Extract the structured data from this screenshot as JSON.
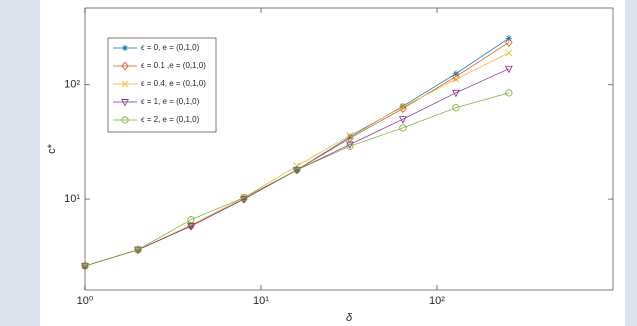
{
  "chart_data": {
    "type": "line",
    "xlabel": "δ",
    "ylabel": "c*",
    "x": [
      1,
      2,
      4,
      8,
      16,
      32,
      64,
      128,
      256
    ],
    "series": [
      {
        "name": "ϵ = 0, e = (0,1,0)",
        "color": "#0072bd",
        "marker": "asterisk",
        "values": [
          2.6,
          3.6,
          5.8,
          10,
          18,
          35,
          65,
          125,
          255
        ]
      },
      {
        "name": "ϵ = 0.1 ,e = (0,1,0)",
        "color": "#d95319",
        "marker": "diamond",
        "values": [
          2.6,
          3.6,
          5.8,
          10,
          18,
          34,
          62,
          118,
          235
        ]
      },
      {
        "name": "ϵ = 0.4, e = (0,1,0)",
        "color": "#edb120",
        "marker": "x",
        "values": [
          2.6,
          3.6,
          5.9,
          10.3,
          19.5,
          36,
          64,
          112,
          190
        ]
      },
      {
        "name": "ϵ = 1, e = (0,1,0)",
        "color": "#7e2f8e",
        "marker": "triangle-down",
        "values": [
          2.6,
          3.6,
          5.8,
          10,
          18,
          30,
          50,
          85,
          138
        ]
      },
      {
        "name": "ϵ = 2, e = (0,1,0)",
        "color": "#77ac30",
        "marker": "circle",
        "values": [
          2.6,
          3.6,
          6.6,
          10.3,
          18,
          29,
          42,
          63,
          85
        ]
      }
    ],
    "xlim": [
      1,
      1000
    ],
    "ylim": [
      1.6,
      470
    ],
    "xticks": [
      {
        "value": 1,
        "label": "10⁰"
      },
      {
        "value": 10,
        "label": "10¹"
      },
      {
        "value": 100,
        "label": "10²"
      }
    ],
    "yticks": [
      {
        "value": 10,
        "label": "10¹"
      },
      {
        "value": 100,
        "label": "10²"
      }
    ],
    "xscale": "log",
    "yscale": "log",
    "legend": "upper left",
    "grid": false
  }
}
